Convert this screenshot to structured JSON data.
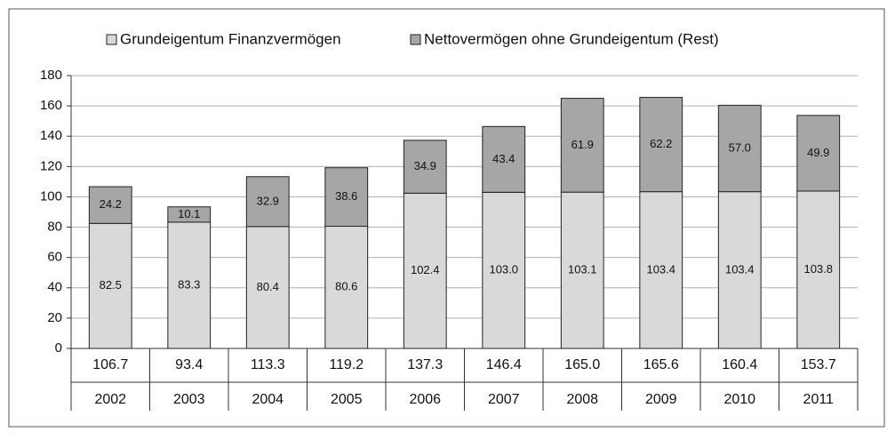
{
  "chart_data": {
    "type": "stacked_bar",
    "categories": [
      "2002",
      "2003",
      "2004",
      "2005",
      "2006",
      "2007",
      "2008",
      "2009",
      "2010",
      "2011"
    ],
    "series": [
      {
        "name": "Grundeigentum Finanzvermögen",
        "color": "#d9d9d9",
        "values": [
          82.5,
          83.3,
          80.4,
          80.6,
          102.4,
          103.0,
          103.1,
          103.4,
          103.4,
          103.8
        ],
        "value_labels": [
          "82.5",
          "83.3",
          "80.4",
          "80.6",
          "102.4",
          "103.0",
          "103.1",
          "103.4",
          "103.4",
          "103.8"
        ]
      },
      {
        "name": "Nettovermögen ohne Grundeigentum (Rest)",
        "color": "#a6a6a6",
        "values": [
          24.2,
          10.1,
          32.9,
          38.6,
          34.9,
          43.4,
          61.9,
          62.2,
          57.0,
          49.9
        ],
        "value_labels": [
          "24.2",
          "10.1",
          "32.9",
          "38.6",
          "34.9",
          "43.4",
          "61.9",
          "62.2",
          "57.0",
          "49.9"
        ]
      }
    ],
    "totals": [
      "106.7",
      "93.4",
      "113.3",
      "119.2",
      "137.3",
      "146.4",
      "165.0",
      "165.6",
      "160.4",
      "153.7"
    ],
    "ylim": [
      0,
      180
    ],
    "yticks": [
      0,
      20,
      40,
      60,
      80,
      100,
      120,
      140,
      160,
      180
    ],
    "grid": true
  }
}
